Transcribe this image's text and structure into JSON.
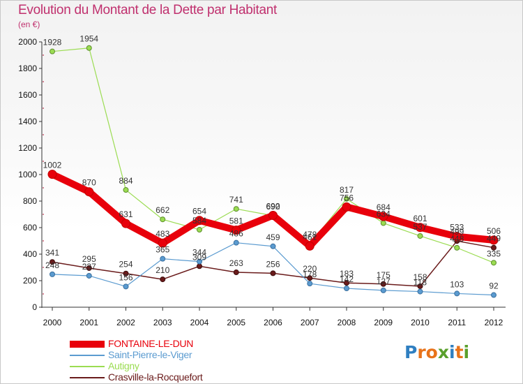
{
  "chart_data": {
    "type": "line",
    "title": "Evolution du Montant de la Dette par Habitant",
    "subtitle": "(en €)",
    "xlabel": "",
    "ylabel": "",
    "categories": [
      "2000",
      "2001",
      "2002",
      "2003",
      "2004",
      "2005",
      "2006",
      "2007",
      "2008",
      "2009",
      "2010",
      "2011",
      "2012"
    ],
    "yticks": [
      "0",
      "200",
      "400",
      "600",
      "800",
      "1000",
      "1200",
      "1400",
      "1600",
      "1800",
      "2000"
    ],
    "ylim": [
      0,
      2000
    ],
    "grid": false,
    "legend_position": "bottom-left",
    "series": [
      {
        "name": "FONTAINE-LE-DUN",
        "color": "#e8000b",
        "values": [
          1002,
          870,
          631,
          483,
          654,
          581,
          692,
          461,
          756,
          684,
          601,
          533,
          506
        ]
      },
      {
        "name": "Saint-Pierre-le-Viger",
        "color": "#5b9bd0",
        "values": [
          248,
          237,
          156,
          365,
          344,
          486,
          459,
          178,
          142,
          127,
          118,
          103,
          92
        ]
      },
      {
        "name": "Autigny",
        "color": "#9bdc52",
        "values": [
          1928,
          1954,
          884,
          662,
          584,
          741,
          690,
          478,
          817,
          634,
          537,
          448,
          335
        ]
      },
      {
        "name": "Crasville-la-Rocquefort",
        "color": "#6a1b1b",
        "values": [
          341,
          295,
          254,
          210,
          309,
          263,
          256,
          220,
          183,
          175,
          158,
          499,
          449
        ]
      }
    ]
  },
  "logo": {
    "text": "Proxiti"
  }
}
